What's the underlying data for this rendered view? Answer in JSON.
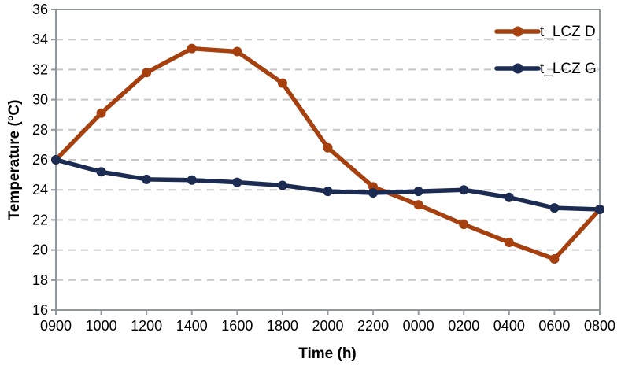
{
  "chart_data": {
    "type": "line",
    "title": "",
    "xlabel": "Time (h)",
    "ylabel": "Temperature (°C)",
    "categories": [
      "0900",
      "1000",
      "1200",
      "1400",
      "1600",
      "1800",
      "2000",
      "2200",
      "0000",
      "0200",
      "0400",
      "0600",
      "0800"
    ],
    "series": [
      {
        "name": "t_LCZ D",
        "color": "#A6400F",
        "values": [
          26.0,
          29.1,
          31.8,
          33.4,
          33.2,
          31.1,
          26.8,
          24.2,
          23.0,
          21.7,
          20.5,
          19.4,
          22.7
        ]
      },
      {
        "name": "t_LCZ G",
        "color": "#1B2B52",
        "values": [
          26.0,
          25.2,
          24.7,
          24.65,
          24.5,
          24.3,
          23.9,
          23.8,
          23.9,
          24.0,
          23.5,
          22.8,
          22.7
        ]
      }
    ],
    "ylim": [
      16,
      36
    ],
    "ytick_step": 2,
    "grid": "horizontal-dashed",
    "legend_position": "top-right",
    "marker": "circle",
    "axis_color": "#8F979D",
    "grid_color": "#C6C6C6",
    "text_color": "#000000"
  }
}
